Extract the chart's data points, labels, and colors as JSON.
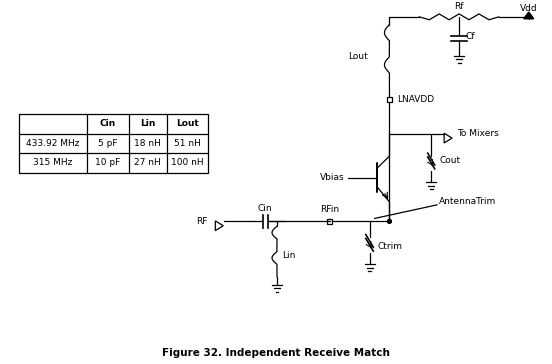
{
  "title": "Figure 32. Independent Receive Match",
  "bg_color": "#ffffff",
  "table": {
    "headers": [
      "",
      "Cin",
      "Lin",
      "Lout"
    ],
    "rows": [
      [
        "433.92 MHz",
        "5 pF",
        "18 nH",
        "51 nH"
      ],
      [
        "315 MHz",
        "10 pF",
        "27 nH",
        "100 nH"
      ]
    ]
  },
  "line_color": "#000000",
  "label_fontsize": 6.5,
  "title_fontsize": 7.5,
  "fig_width": 5.52,
  "fig_height": 3.64
}
